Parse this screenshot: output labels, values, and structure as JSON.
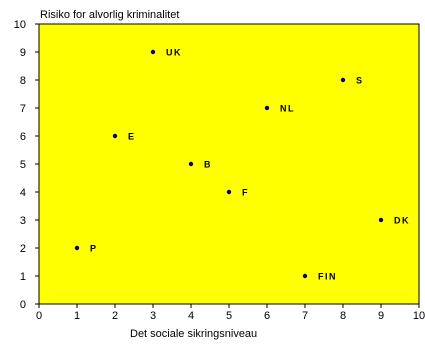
{
  "chart_data": {
    "type": "scatter",
    "title": "",
    "ylabel": "Risiko for alvorlig kriminalitet",
    "xlabel": "Det sociale sikringsniveau",
    "xlim": [
      0,
      10
    ],
    "ylim": [
      0,
      10
    ],
    "xticks": [
      "0",
      "1",
      "2",
      "3",
      "4",
      "5",
      "6",
      "7",
      "8",
      "9",
      "10"
    ],
    "yticks": [
      "0",
      "1",
      "2",
      "3",
      "4",
      "5",
      "6",
      "7",
      "8",
      "9",
      "10"
    ],
    "grid": false,
    "background_color": "#ffff00",
    "point_color": "#000080",
    "points": [
      {
        "label": "UK",
        "x": 3,
        "y": 9
      },
      {
        "label": "S",
        "x": 8,
        "y": 8
      },
      {
        "label": "NL",
        "x": 6,
        "y": 7
      },
      {
        "label": "E",
        "x": 2,
        "y": 6
      },
      {
        "label": "B",
        "x": 4,
        "y": 5
      },
      {
        "label": "F",
        "x": 5,
        "y": 4
      },
      {
        "label": "DK",
        "x": 9,
        "y": 3
      },
      {
        "label": "P",
        "x": 1,
        "y": 2
      },
      {
        "label": "FIN",
        "x": 7,
        "y": 1
      }
    ]
  }
}
